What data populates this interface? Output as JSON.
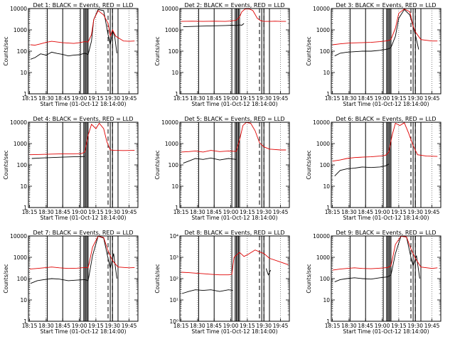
{
  "figure": {
    "x_tick_labels": [
      "18:15",
      "18:30",
      "18:45",
      "19:00",
      "19:15",
      "19:30",
      "19:45"
    ],
    "xlabel": "Start Time (01-Oct-12 18:14:00)",
    "ylabel": "Counts/sec",
    "colors": {
      "events": "#000000",
      "lld": "#e00000",
      "axes": "#000000"
    }
  },
  "chart_data": [
    {
      "type": "line",
      "title": "Det 1: BLACK = Events, RED = LLD",
      "ylabel": "Counts/sec",
      "xlim": [
        "18:14",
        "19:53"
      ],
      "yscale": "log",
      "ylim": [
        1,
        10000
      ],
      "y_tick_labels": [
        "1",
        "10",
        "100",
        "1000",
        "10000"
      ],
      "solid_markers": [
        "18:31",
        "18:45",
        "19:01",
        "19:04",
        "19:05",
        "19:06",
        "19:07",
        "19:08",
        "19:28",
        "19:30",
        "19:35"
      ],
      "dashed_markers": [
        "19:08",
        "19:26",
        "19:30"
      ],
      "series": [
        {
          "name": "BLACK = Events",
          "color": "#000000",
          "x": [
            "18:16",
            "18:20",
            "18:25",
            "18:30",
            "18:35",
            "18:40",
            "18:45",
            "18:50",
            "18:55",
            "19:00",
            "19:05",
            "19:08",
            "19:11",
            "19:13",
            "19:17",
            "19:22",
            "19:26",
            "19:28",
            "19:30",
            "19:32",
            "19:34"
          ],
          "y": [
            42,
            50,
            75,
            65,
            90,
            78,
            70,
            60,
            65,
            68,
            80,
            70,
            300,
            3000,
            9000,
            8000,
            600,
            200,
            900,
            500,
            80
          ]
        },
        {
          "name": "RED = LLD",
          "color": "#e00000",
          "x": [
            "18:16",
            "18:20",
            "18:25",
            "18:30",
            "18:35",
            "18:40",
            "18:45",
            "18:50",
            "18:55",
            "19:00",
            "19:05",
            "19:08",
            "19:11",
            "19:13",
            "19:17",
            "19:22",
            "19:26",
            "19:28",
            "19:30",
            "19:33",
            "19:40",
            "19:45",
            "19:50"
          ],
          "y": [
            200,
            190,
            220,
            260,
            290,
            270,
            250,
            240,
            230,
            250,
            280,
            270,
            600,
            3000,
            8000,
            5000,
            2000,
            500,
            1000,
            500,
            300,
            290,
            300
          ]
        }
      ]
    },
    {
      "type": "line",
      "title": "Det 2: BLACK = Events, RED = LLD",
      "ylabel": "Counts/sec",
      "xlim": [
        "18:14",
        "19:53"
      ],
      "yscale": "log",
      "ylim": [
        1,
        10000
      ],
      "y_tick_labels": [
        "1",
        "10",
        "100",
        "1000",
        "10000"
      ],
      "solid_markers": [
        "18:31",
        "18:45",
        "19:01",
        "19:04",
        "19:05",
        "19:06",
        "19:07",
        "19:08",
        "19:28",
        "19:30",
        "19:35"
      ],
      "dashed_markers": [
        "19:08",
        "19:26",
        "19:30"
      ],
      "series": [
        {
          "name": "BLACK = Events",
          "color": "#000000",
          "x": [
            "18:17",
            "18:25",
            "18:35",
            "18:45",
            "18:55",
            "19:02",
            "19:05",
            "19:08",
            "19:10",
            "19:12"
          ],
          "y": [
            1400,
            1450,
            1500,
            1550,
            1600,
            1650,
            1600,
            1700,
            1650,
            2000
          ]
        },
        {
          "name": "RED = LLD",
          "color": "#e00000",
          "x": [
            "18:15",
            "18:25",
            "18:35",
            "18:45",
            "18:55",
            "19:00",
            "19:05",
            "19:08",
            "19:10",
            "19:13",
            "19:17",
            "19:20",
            "19:24",
            "19:27",
            "19:30",
            "19:35",
            "19:40",
            "19:45",
            "19:50"
          ],
          "y": [
            2500,
            2550,
            2500,
            2550,
            2500,
            2600,
            2800,
            4000,
            7000,
            9500,
            9500,
            8000,
            3500,
            2700,
            2500,
            2500,
            2550,
            2500,
            2500
          ]
        }
      ]
    },
    {
      "type": "line",
      "title": "Det 3: BLACK = Events, RED = LLD",
      "ylabel": "Counts/sec",
      "xlim": [
        "18:14",
        "19:53"
      ],
      "yscale": "log",
      "ylim": [
        1,
        10000
      ],
      "y_tick_labels": [
        "1",
        "10",
        "100",
        "1000",
        "10000"
      ],
      "solid_markers": [
        "18:31",
        "18:45",
        "19:01",
        "19:04",
        "19:05",
        "19:06",
        "19:07",
        "19:08",
        "19:28",
        "19:30",
        "19:35"
      ],
      "dashed_markers": [
        "19:08",
        "19:26",
        "19:30"
      ],
      "series": [
        {
          "name": "BLACK = Events",
          "color": "#000000",
          "x": [
            "18:17",
            "18:22",
            "18:28",
            "18:35",
            "18:42",
            "18:50",
            "18:58",
            "19:03",
            "19:06",
            "19:08",
            "19:12",
            "19:15",
            "19:20",
            "19:25",
            "19:28",
            "19:30",
            "19:33"
          ],
          "y": [
            60,
            80,
            90,
            95,
            100,
            100,
            110,
            120,
            130,
            150,
            500,
            3500,
            9000,
            5000,
            1500,
            600,
            120
          ]
        },
        {
          "name": "RED = LLD",
          "color": "#e00000",
          "x": [
            "18:15",
            "18:22",
            "18:30",
            "18:40",
            "18:50",
            "18:58",
            "19:03",
            "19:06",
            "19:08",
            "19:12",
            "19:15",
            "19:20",
            "19:25",
            "19:28",
            "19:30",
            "19:35",
            "19:45",
            "19:50"
          ],
          "y": [
            200,
            220,
            240,
            250,
            260,
            280,
            300,
            320,
            360,
            1200,
            6000,
            9500,
            7000,
            1500,
            800,
            350,
            300,
            300
          ]
        }
      ]
    },
    {
      "type": "line",
      "title": "Det 4: BLACK = Events, RED = LLD",
      "ylabel": "Counts/sec",
      "xlim": [
        "18:14",
        "19:53"
      ],
      "yscale": "log",
      "ylim": [
        1,
        10000
      ],
      "y_tick_labels": [
        "1",
        "10",
        "100",
        "1000",
        "10000"
      ],
      "solid_markers": [
        "18:31",
        "18:45",
        "19:01",
        "19:04",
        "19:05",
        "19:06",
        "19:07",
        "19:08",
        "19:28",
        "19:30",
        "19:35"
      ],
      "dashed_markers": [
        "19:08",
        "19:26",
        "19:30"
      ],
      "series": [
        {
          "name": "BLACK = Events",
          "color": "#000000",
          "x": [
            "18:17",
            "18:25",
            "18:35",
            "18:45",
            "18:55",
            "19:02",
            "19:05"
          ],
          "y": [
            200,
            210,
            220,
            230,
            240,
            240,
            250
          ]
        },
        {
          "name": "RED = LLD",
          "color": "#e00000",
          "x": [
            "18:15",
            "18:25",
            "18:35",
            "18:45",
            "18:55",
            "19:02",
            "19:05",
            "19:08",
            "19:11",
            "19:15",
            "19:18",
            "19:22",
            "19:25",
            "19:28",
            "19:32",
            "19:40",
            "19:50"
          ],
          "y": [
            300,
            310,
            320,
            330,
            330,
            340,
            400,
            2500,
            8000,
            5000,
            9000,
            5000,
            1200,
            500,
            480,
            470,
            480
          ]
        }
      ]
    },
    {
      "type": "line",
      "title": "Det 5: BLACK = Events, RED = LLD",
      "ylabel": "Counts/sec",
      "xlim": [
        "18:14",
        "19:53"
      ],
      "yscale": "log",
      "ylim": [
        1,
        10000
      ],
      "y_tick_labels": [
        "1",
        "10",
        "100",
        "1000",
        "10000"
      ],
      "solid_markers": [
        "18:31",
        "18:45",
        "19:01",
        "19:04",
        "19:05",
        "19:06",
        "19:07",
        "19:08",
        "19:28",
        "19:30",
        "19:35"
      ],
      "dashed_markers": [
        "19:08",
        "19:26",
        "19:30"
      ],
      "series": [
        {
          "name": "BLACK = Events",
          "color": "#000000",
          "x": [
            "18:17",
            "18:22",
            "18:28",
            "18:35",
            "18:42",
            "18:50",
            "18:58",
            "19:05"
          ],
          "y": [
            120,
            150,
            200,
            180,
            210,
            170,
            200,
            180
          ]
        },
        {
          "name": "RED = LLD",
          "color": "#e00000",
          "x": [
            "18:15",
            "18:22",
            "18:28",
            "18:35",
            "18:42",
            "18:50",
            "18:58",
            "19:05",
            "19:08",
            "19:11",
            "19:14",
            "19:18",
            "19:22",
            "19:26",
            "19:30",
            "19:35",
            "19:45",
            "19:50"
          ],
          "y": [
            400,
            420,
            450,
            400,
            480,
            420,
            450,
            430,
            1500,
            7000,
            9800,
            9000,
            4000,
            1100,
            700,
            550,
            500,
            500
          ]
        }
      ]
    },
    {
      "type": "line",
      "title": "Det 6: BLACK = Events, RED = LLD",
      "ylabel": "Counts/sec",
      "xlim": [
        "18:14",
        "19:53"
      ],
      "yscale": "log",
      "ylim": [
        1,
        10000
      ],
      "y_tick_labels": [
        "1",
        "10",
        "100",
        "1000",
        "10000"
      ],
      "solid_markers": [
        "18:31",
        "18:45",
        "19:01",
        "19:04",
        "19:05",
        "19:06",
        "19:07",
        "19:08",
        "19:28",
        "19:30",
        "19:35"
      ],
      "dashed_markers": [
        "19:08",
        "19:26",
        "19:30"
      ],
      "series": [
        {
          "name": "BLACK = Events",
          "color": "#000000",
          "x": [
            "18:17",
            "18:22",
            "18:28",
            "18:35",
            "18:42",
            "18:50",
            "18:58",
            "19:03",
            "19:06"
          ],
          "y": [
            30,
            55,
            65,
            70,
            80,
            75,
            80,
            90,
            110
          ]
        },
        {
          "name": "RED = LLD",
          "color": "#e00000",
          "x": [
            "18:15",
            "18:22",
            "18:28",
            "18:35",
            "18:42",
            "18:50",
            "18:58",
            "19:03",
            "19:06",
            "19:09",
            "19:12",
            "19:16",
            "19:20",
            "19:24",
            "19:28",
            "19:32",
            "19:40",
            "19:50"
          ],
          "y": [
            150,
            170,
            200,
            220,
            230,
            240,
            260,
            280,
            400,
            2500,
            9000,
            7000,
            9500,
            3000,
            800,
            300,
            260,
            250
          ]
        }
      ]
    },
    {
      "type": "line",
      "title": "Det 7: BLACK = Events, RED = LLD",
      "ylabel": "Counts/sec",
      "xlim": [
        "18:14",
        "19:53"
      ],
      "yscale": "log",
      "ylim": [
        1,
        10000
      ],
      "y_tick_labels": [
        "1",
        "10",
        "100",
        "1000",
        "10000"
      ],
      "solid_markers": [
        "18:31",
        "18:45",
        "19:01",
        "19:04",
        "19:05",
        "19:06",
        "19:07",
        "19:08",
        "19:28",
        "19:30",
        "19:35"
      ],
      "dashed_markers": [
        "19:08",
        "19:26",
        "19:30"
      ],
      "series": [
        {
          "name": "BLACK = Events",
          "color": "#000000",
          "x": [
            "18:16",
            "18:22",
            "18:28",
            "18:35",
            "18:42",
            "18:50",
            "18:58",
            "19:05",
            "19:08",
            "19:12",
            "19:17",
            "19:22",
            "19:26",
            "19:28",
            "19:31",
            "19:34"
          ],
          "y": [
            60,
            80,
            90,
            100,
            95,
            80,
            85,
            90,
            80,
            1200,
            9800,
            8000,
            900,
            300,
            1500,
            100
          ]
        },
        {
          "name": "RED = LLD",
          "color": "#e00000",
          "x": [
            "18:15",
            "18:22",
            "18:28",
            "18:35",
            "18:42",
            "18:50",
            "18:58",
            "19:05",
            "19:08",
            "19:12",
            "19:17",
            "19:22",
            "19:26",
            "19:30",
            "19:35",
            "19:45",
            "19:50"
          ],
          "y": [
            280,
            300,
            320,
            350,
            320,
            300,
            310,
            330,
            320,
            3000,
            9800,
            8500,
            2000,
            700,
            350,
            320,
            330
          ]
        }
      ]
    },
    {
      "type": "line",
      "title": "Det 8: BLACK = Events, RED = LLD",
      "ylabel": "Counts/sec",
      "xlim": [
        "18:14",
        "19:53"
      ],
      "yscale": "log",
      "ylim": [
        1,
        10000
      ],
      "y_tick_labels": [
        "10⁰",
        "10¹",
        "10²",
        "10³",
        "10⁴"
      ],
      "solid_markers": [
        "18:31",
        "18:45",
        "19:01",
        "19:04",
        "19:05",
        "19:06",
        "19:07",
        "19:08",
        "19:28",
        "19:30",
        "19:35"
      ],
      "dashed_markers": [
        "19:08",
        "19:26",
        "19:30"
      ],
      "series": [
        {
          "name": "BLACK = Events",
          "color": "#000000",
          "x": [
            "18:16",
            "18:22",
            "18:28",
            "18:35",
            "18:42",
            "18:50",
            "18:58",
            "19:02"
          ],
          "y": [
            20,
            25,
            30,
            28,
            30,
            25,
            30,
            28
          ]
        },
        {
          "name": "RED = LLD",
          "color": "#e00000",
          "x": [
            "18:15",
            "18:22",
            "18:28",
            "18:35",
            "18:42",
            "18:50",
            "18:58",
            "19:01",
            "19:03",
            "19:08",
            "19:12",
            "19:16",
            "19:22",
            "19:26",
            "19:30",
            "19:35",
            "19:45",
            "19:52"
          ],
          "y": [
            200,
            190,
            180,
            170,
            160,
            150,
            150,
            160,
            1000,
            1700,
            1100,
            1400,
            2200,
            1800,
            1500,
            900,
            600,
            450
          ]
        },
        {
          "name": "",
          "color": "#000000",
          "x": [
            "19:32",
            "19:34",
            "19:36"
          ],
          "y": [
            300,
            150,
            250
          ]
        }
      ]
    },
    {
      "type": "line",
      "title": "Det 9: BLACK = Events, RED = LLD",
      "ylabel": "Counts/sec",
      "xlim": [
        "18:14",
        "19:53"
      ],
      "yscale": "log",
      "ylim": [
        1,
        10000
      ],
      "y_tick_labels": [
        "1",
        "10",
        "100",
        "1000",
        "10000"
      ],
      "solid_markers": [
        "18:31",
        "18:45",
        "19:01",
        "19:04",
        "19:05",
        "19:06",
        "19:07",
        "19:08",
        "19:28",
        "19:30",
        "19:35"
      ],
      "dashed_markers": [
        "19:08",
        "19:26",
        "19:30"
      ],
      "series": [
        {
          "name": "BLACK = Events",
          "color": "#000000",
          "x": [
            "18:17",
            "18:22",
            "18:28",
            "18:35",
            "18:42",
            "18:50",
            "18:58",
            "19:05",
            "19:08",
            "19:12",
            "19:17",
            "19:22",
            "19:26",
            "19:28",
            "19:31",
            "19:34"
          ],
          "y": [
            70,
            90,
            100,
            110,
            100,
            95,
            110,
            120,
            150,
            1500,
            9800,
            9000,
            1000,
            400,
            1200,
            100
          ]
        },
        {
          "name": "RED = LLD",
          "color": "#e00000",
          "x": [
            "18:15",
            "18:22",
            "18:28",
            "18:35",
            "18:42",
            "18:50",
            "18:58",
            "19:05",
            "19:08",
            "19:12",
            "19:17",
            "19:22",
            "19:26",
            "19:30",
            "19:35",
            "19:45",
            "19:50"
          ],
          "y": [
            250,
            280,
            300,
            320,
            300,
            290,
            310,
            330,
            400,
            4000,
            9800,
            9000,
            2500,
            900,
            350,
            300,
            320
          ]
        }
      ]
    }
  ]
}
